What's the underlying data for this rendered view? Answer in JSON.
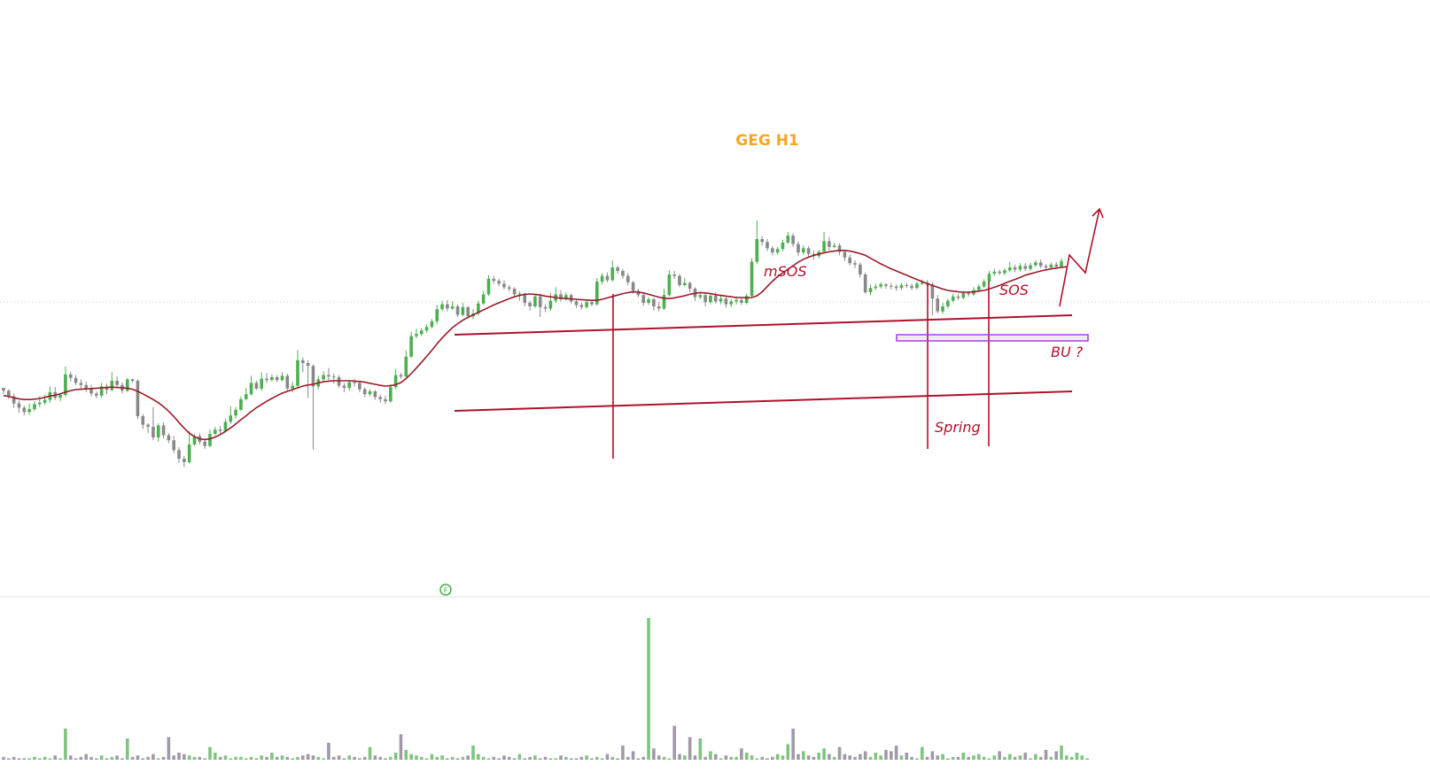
{
  "chart_data": {
    "type": "candlestick",
    "title": "GEG H1",
    "colors": {
      "title": "#f5a623",
      "up": "#4caf50",
      "down": "#888888",
      "volume_up": "#7fc47f",
      "volume_down": "#a09aa8",
      "annotation": "#b0102a",
      "moving_average": "#9a1b2b",
      "zone": "#a93ee0",
      "marker": "#33b233",
      "guide": "#c8c8c8"
    },
    "price_range": [
      0,
      100
    ],
    "volume_range": [
      0,
      100
    ],
    "candles": [
      [
        58.0,
        57.2,
        56.2,
        58.0
      ],
      [
        57.2,
        55.6,
        54.8,
        57.6
      ],
      [
        55.6,
        53.6,
        52.4,
        56.4
      ],
      [
        53.6,
        52.4,
        51.0,
        54.4
      ],
      [
        52.4,
        51.2,
        50.2,
        53.0
      ],
      [
        51.2,
        52.0,
        50.4,
        53.6
      ],
      [
        52.0,
        53.4,
        51.4,
        54.2
      ],
      [
        53.4,
        53.8,
        52.6,
        55.6
      ],
      [
        53.8,
        54.6,
        53.2,
        56.0
      ],
      [
        54.6,
        56.8,
        53.8,
        58.4
      ],
      [
        56.8,
        55.2,
        54.6,
        58.2
      ],
      [
        55.2,
        56.0,
        54.2,
        56.6
      ],
      [
        56.0,
        61.8,
        55.4,
        64.0
      ],
      [
        61.8,
        60.8,
        59.8,
        62.6
      ],
      [
        60.8,
        59.4,
        58.8,
        61.6
      ],
      [
        59.4,
        58.8,
        57.8,
        60.4
      ],
      [
        58.8,
        57.6,
        56.8,
        59.8
      ],
      [
        57.6,
        56.4,
        55.6,
        58.8
      ],
      [
        56.4,
        55.8,
        55.0,
        57.0
      ],
      [
        55.8,
        58.4,
        55.2,
        59.4
      ],
      [
        58.4,
        57.4,
        56.2,
        59.2
      ],
      [
        57.4,
        60.0,
        57.0,
        62.4
      ],
      [
        60.0,
        58.8,
        58.2,
        61.2
      ],
      [
        58.8,
        57.2,
        56.4,
        59.6
      ],
      [
        57.2,
        60.4,
        56.8,
        60.8
      ],
      [
        60.4,
        60.0,
        59.4,
        60.6
      ],
      [
        60.0,
        50.0,
        49.2,
        60.4
      ],
      [
        50.0,
        47.6,
        46.4,
        50.6
      ],
      [
        47.6,
        47.0,
        45.2,
        48.0
      ],
      [
        47.0,
        44.0,
        43.2,
        52.6
      ],
      [
        44.0,
        47.4,
        42.8,
        48.0
      ],
      [
        47.4,
        44.6,
        43.8,
        48.2
      ],
      [
        44.6,
        43.2,
        42.4,
        45.2
      ],
      [
        43.2,
        40.4,
        39.6,
        44.4
      ],
      [
        40.4,
        38.0,
        36.8,
        41.2
      ],
      [
        38.0,
        37.0,
        35.6,
        38.8
      ],
      [
        37.0,
        42.0,
        36.6,
        45.8
      ],
      [
        42.0,
        44.4,
        41.6,
        45.0
      ],
      [
        44.4,
        42.8,
        42.0,
        45.2
      ],
      [
        42.8,
        41.6,
        40.8,
        43.6
      ],
      [
        41.6,
        45.0,
        41.2,
        46.2
      ],
      [
        45.0,
        46.2,
        44.6,
        47.0
      ],
      [
        46.2,
        45.8,
        44.8,
        47.2
      ],
      [
        45.8,
        48.4,
        45.4,
        49.2
      ],
      [
        48.4,
        50.2,
        47.8,
        52.8
      ],
      [
        50.2,
        51.8,
        49.4,
        52.6
      ],
      [
        51.8,
        54.8,
        51.4,
        55.6
      ],
      [
        54.8,
        56.2,
        54.4,
        58.0
      ],
      [
        56.2,
        59.4,
        55.8,
        61.4
      ],
      [
        59.4,
        57.8,
        57.4,
        60.0
      ],
      [
        57.8,
        60.6,
        57.2,
        62.4
      ],
      [
        60.6,
        60.2,
        59.4,
        62.2
      ],
      [
        60.2,
        61.0,
        59.8,
        61.8
      ],
      [
        61.0,
        60.2,
        59.6,
        61.6
      ],
      [
        60.2,
        61.4,
        59.8,
        62.4
      ],
      [
        61.4,
        57.8,
        57.0,
        62.0
      ],
      [
        57.8,
        58.6,
        56.8,
        59.8
      ],
      [
        58.6,
        65.8,
        58.2,
        68.6
      ],
      [
        65.8,
        65.0,
        62.4,
        66.6
      ],
      [
        65.0,
        64.2,
        55.2,
        65.8
      ],
      [
        64.2,
        58.4,
        40.6,
        64.6
      ],
      [
        58.4,
        60.4,
        57.6,
        61.4
      ],
      [
        60.4,
        61.6,
        59.8,
        62.6
      ],
      [
        61.6,
        61.2,
        60.2,
        63.6
      ],
      [
        61.2,
        61.0,
        59.2,
        62.0
      ],
      [
        61.0,
        58.6,
        58.0,
        61.6
      ],
      [
        58.6,
        58.0,
        56.8,
        59.4
      ],
      [
        58.0,
        59.6,
        57.2,
        60.2
      ],
      [
        59.6,
        59.4,
        58.4,
        60.6
      ],
      [
        59.4,
        57.6,
        56.8,
        60.0
      ],
      [
        57.6,
        56.2,
        55.4,
        58.2
      ],
      [
        56.2,
        57.0,
        55.6,
        57.6
      ],
      [
        57.0,
        55.4,
        54.6,
        57.4
      ],
      [
        55.4,
        54.8,
        53.8,
        56.0
      ],
      [
        54.8,
        54.2,
        53.4,
        55.8
      ],
      [
        54.2,
        58.2,
        53.8,
        59.0
      ],
      [
        58.2,
        61.6,
        57.6,
        63.4
      ],
      [
        61.6,
        61.2,
        60.6,
        62.2
      ],
      [
        61.2,
        66.8,
        61.0,
        68.6
      ],
      [
        66.8,
        72.6,
        66.4,
        73.8
      ],
      [
        72.6,
        73.2,
        72.0,
        74.6
      ],
      [
        73.2,
        74.2,
        72.6,
        74.8
      ],
      [
        74.2,
        75.2,
        73.6,
        75.8
      ],
      [
        75.2,
        76.8,
        74.8,
        77.4
      ],
      [
        76.8,
        80.2,
        76.0,
        81.4
      ],
      [
        80.2,
        81.6,
        79.6,
        82.6
      ],
      [
        81.6,
        80.4,
        79.6,
        82.8
      ],
      [
        80.4,
        81.0,
        80.0,
        82.4
      ],
      [
        81.0,
        78.6,
        78.0,
        81.6
      ],
      [
        78.6,
        80.8,
        78.2,
        82.0
      ],
      [
        80.8,
        78.2,
        77.6,
        81.0
      ],
      [
        78.2,
        79.0,
        77.4,
        80.2
      ],
      [
        79.0,
        81.8,
        78.4,
        82.6
      ],
      [
        81.8,
        84.4,
        81.4,
        85.4
      ],
      [
        84.4,
        88.8,
        84.0,
        89.8
      ],
      [
        88.8,
        88.2,
        87.4,
        89.6
      ],
      [
        88.2,
        87.4,
        86.8,
        88.8
      ],
      [
        87.4,
        86.4,
        85.8,
        88.4
      ],
      [
        86.4,
        86.0,
        85.2,
        87.0
      ],
      [
        86.0,
        84.4,
        83.6,
        86.4
      ],
      [
        84.4,
        84.6,
        82.6,
        85.2
      ],
      [
        84.6,
        82.0,
        81.0,
        84.8
      ],
      [
        82.0,
        81.0,
        79.8,
        82.6
      ],
      [
        81.0,
        83.8,
        80.6,
        84.4
      ],
      [
        83.8,
        80.8,
        78.0,
        84.6
      ],
      [
        80.8,
        80.4,
        79.4,
        81.6
      ],
      [
        80.4,
        82.6,
        79.8,
        84.8
      ],
      [
        82.6,
        84.4,
        82.0,
        86.4
      ],
      [
        84.4,
        83.0,
        82.4,
        85.6
      ],
      [
        83.0,
        84.2,
        82.6,
        85.0
      ],
      [
        84.2,
        82.4,
        81.8,
        84.6
      ],
      [
        82.4,
        81.4,
        80.6,
        83.0
      ],
      [
        81.4,
        80.8,
        80.2,
        82.0
      ],
      [
        80.8,
        82.2,
        80.4,
        82.8
      ],
      [
        82.2,
        81.6,
        81.0,
        82.6
      ],
      [
        81.6,
        88.0,
        81.2,
        89.0
      ],
      [
        88.0,
        89.6,
        87.2,
        90.4
      ],
      [
        89.6,
        88.4,
        87.8,
        90.6
      ],
      [
        88.4,
        92.0,
        88.0,
        94.0
      ],
      [
        92.0,
        91.0,
        90.2,
        92.6
      ],
      [
        91.0,
        89.6,
        88.8,
        91.6
      ],
      [
        89.6,
        87.8,
        87.0,
        90.4
      ],
      [
        87.8,
        85.4,
        84.6,
        88.2
      ],
      [
        85.4,
        84.2,
        83.6,
        86.0
      ],
      [
        84.2,
        82.0,
        81.2,
        84.8
      ],
      [
        82.0,
        83.0,
        81.4,
        83.6
      ],
      [
        83.0,
        81.0,
        79.8,
        83.4
      ],
      [
        81.0,
        80.4,
        79.6,
        82.2
      ],
      [
        80.4,
        84.2,
        80.0,
        86.0
      ],
      [
        84.2,
        90.0,
        83.8,
        91.2
      ],
      [
        90.0,
        89.6,
        88.8,
        91.0
      ],
      [
        89.6,
        87.0,
        86.4,
        90.2
      ],
      [
        87.0,
        87.6,
        86.6,
        89.0
      ],
      [
        87.6,
        86.0,
        85.0,
        88.0
      ],
      [
        86.0,
        83.6,
        82.6,
        86.4
      ],
      [
        83.6,
        84.2,
        83.0,
        85.0
      ],
      [
        84.2,
        82.2,
        81.0,
        84.6
      ],
      [
        82.2,
        84.0,
        81.6,
        84.8
      ],
      [
        84.0,
        82.4,
        81.8,
        85.0
      ],
      [
        82.4,
        83.2,
        81.6,
        84.2
      ],
      [
        83.2,
        81.6,
        80.6,
        83.6
      ],
      [
        81.6,
        82.4,
        80.8,
        83.0
      ],
      [
        82.4,
        82.8,
        81.6,
        83.8
      ],
      [
        82.8,
        82.0,
        81.4,
        83.4
      ],
      [
        82.0,
        84.0,
        81.6,
        84.6
      ],
      [
        84.0,
        93.6,
        83.6,
        94.6
      ],
      [
        93.6,
        100.0,
        93.0,
        105.2
      ],
      [
        100.0,
        99.2,
        98.2,
        100.8
      ],
      [
        99.2,
        97.4,
        96.6,
        100.0
      ],
      [
        97.4,
        96.2,
        95.4,
        98.0
      ],
      [
        96.2,
        97.2,
        95.6,
        97.8
      ],
      [
        97.2,
        99.0,
        96.6,
        99.8
      ],
      [
        99.0,
        101.0,
        98.6,
        102.0
      ],
      [
        101.0,
        98.6,
        97.8,
        101.6
      ],
      [
        98.6,
        96.2,
        95.2,
        99.4
      ],
      [
        96.2,
        97.4,
        95.6,
        98.2
      ],
      [
        97.4,
        95.8,
        94.6,
        98.0
      ],
      [
        95.8,
        95.2,
        94.2,
        96.8
      ],
      [
        95.2,
        96.4,
        94.6,
        97.0
      ],
      [
        96.4,
        99.4,
        96.0,
        102.0
      ],
      [
        99.4,
        97.8,
        96.8,
        100.6
      ],
      [
        97.8,
        98.2,
        97.4,
        99.0
      ],
      [
        98.2,
        96.4,
        95.4,
        98.8
      ],
      [
        96.4,
        94.8,
        93.8,
        97.0
      ],
      [
        94.8,
        93.2,
        92.6,
        95.6
      ],
      [
        93.2,
        92.8,
        91.8,
        94.0
      ],
      [
        92.8,
        90.0,
        89.2,
        93.4
      ],
      [
        90.0,
        85.0,
        84.6,
        90.6
      ],
      [
        85.0,
        86.2,
        84.2,
        87.2
      ],
      [
        86.2,
        86.6,
        85.6,
        87.4
      ],
      [
        86.6,
        87.2,
        86.0,
        87.8
      ],
      [
        87.2,
        86.8,
        86.0,
        87.6
      ],
      [
        86.8,
        86.6,
        85.8,
        87.6
      ],
      [
        86.6,
        86.2,
        85.4,
        87.2
      ],
      [
        86.2,
        87.0,
        85.6,
        87.6
      ],
      [
        87.0,
        86.8,
        86.2,
        87.6
      ],
      [
        86.8,
        86.2,
        85.6,
        87.4
      ],
      [
        86.2,
        87.4,
        85.8,
        88.0
      ],
      [
        87.4,
        87.8,
        87.0,
        88.6
      ],
      [
        87.8,
        87.2,
        86.6,
        88.4
      ],
      [
        87.2,
        83.2,
        78.4,
        87.8
      ],
      [
        83.2,
        79.6,
        79.0,
        84.2
      ],
      [
        79.6,
        81.0,
        79.0,
        82.0
      ],
      [
        81.0,
        82.6,
        80.4,
        83.2
      ],
      [
        82.6,
        83.8,
        82.2,
        84.6
      ],
      [
        83.8,
        83.4,
        82.8,
        84.4
      ],
      [
        83.4,
        84.8,
        83.0,
        85.4
      ],
      [
        84.8,
        84.4,
        83.8,
        85.4
      ],
      [
        84.4,
        85.6,
        84.0,
        86.4
      ],
      [
        85.6,
        86.6,
        85.2,
        87.2
      ],
      [
        86.6,
        88.0,
        86.2,
        88.6
      ],
      [
        88.0,
        90.2,
        87.6,
        91.0
      ],
      [
        90.2,
        90.8,
        89.6,
        91.6
      ],
      [
        90.8,
        90.4,
        89.8,
        91.4
      ],
      [
        90.4,
        91.2,
        89.8,
        91.8
      ],
      [
        91.2,
        92.0,
        90.8,
        93.6
      ],
      [
        92.0,
        91.4,
        90.6,
        92.8
      ],
      [
        91.4,
        92.4,
        90.8,
        93.2
      ],
      [
        92.4,
        91.6,
        91.0,
        93.2
      ],
      [
        91.6,
        92.6,
        91.0,
        93.4
      ],
      [
        92.6,
        93.4,
        92.2,
        94.0
      ],
      [
        93.4,
        92.4,
        91.8,
        94.2
      ],
      [
        92.4,
        92.0,
        91.2,
        93.0
      ],
      [
        92.0,
        92.8,
        91.4,
        93.4
      ],
      [
        92.8,
        92.2,
        91.6,
        93.6
      ],
      [
        92.2,
        93.8,
        91.8,
        94.6
      ]
    ],
    "moving_average": [
      55.8,
      55.6,
      55.2,
      54.9,
      54.7,
      54.7,
      54.8,
      55.0,
      55.3,
      55.7,
      55.9,
      56.3,
      56.8,
      57.2,
      57.5,
      57.6,
      57.7,
      57.8,
      57.9,
      58.0,
      58.1,
      58.2,
      58.1,
      58.0,
      57.9,
      57.6,
      57.0,
      56.3,
      55.5,
      54.7,
      53.8,
      52.7,
      51.4,
      49.9,
      48.2,
      46.6,
      45.2,
      44.2,
      43.6,
      43.4,
      43.6,
      44.1,
      44.8,
      45.7,
      46.7,
      47.8,
      49.0,
      50.1,
      51.3,
      52.4,
      53.3,
      54.2,
      55.0,
      55.8,
      56.5,
      57.0,
      57.5,
      58.0,
      58.5,
      58.8,
      59.0,
      59.4,
      59.7,
      59.9,
      60.0,
      60.0,
      60.0,
      60.0,
      59.9,
      59.8,
      59.6,
      59.3,
      59.0,
      58.7,
      58.5,
      58.6,
      58.9,
      59.5,
      60.6,
      62.0,
      63.6,
      65.2,
      66.9,
      68.6,
      70.4,
      72.1,
      73.6,
      75.0,
      76.1,
      77.1,
      77.9,
      78.6,
      79.3,
      80.0,
      80.7,
      81.4,
      82.0,
      82.6,
      83.2,
      83.7,
      84.1,
      84.4,
      84.5,
      84.4,
      84.2,
      83.9,
      83.7,
      83.5,
      83.3,
      83.2,
      83.1,
      83.0,
      82.9,
      82.8,
      82.7,
      82.7,
      83.0,
      83.4,
      83.8,
      84.2,
      84.6,
      84.9,
      85.1,
      85.0,
      84.8,
      84.4,
      84.0,
      83.6,
      83.3,
      83.2,
      83.4,
      83.7,
      84.0,
      84.4,
      84.7,
      84.9,
      84.8,
      84.6,
      84.3,
      84.1,
      83.9,
      83.7,
      83.5,
      83.5,
      83.4,
      83.5,
      84.0,
      85.1,
      86.6,
      88.1,
      89.4,
      90.5,
      91.5,
      92.5,
      93.5,
      94.3,
      94.9,
      95.4,
      95.8,
      96.1,
      96.4,
      96.6,
      96.8,
      96.8,
      96.6,
      96.3,
      95.9,
      95.4,
      94.6,
      93.8,
      93.0,
      92.3,
      91.6,
      91.0,
      90.4,
      89.8,
      89.2,
      88.6,
      88.0,
      87.4,
      86.9,
      86.4,
      85.9,
      85.5,
      85.3,
      85.1,
      85.0,
      85.0,
      85.1,
      85.3,
      85.5,
      85.9,
      86.4,
      86.9,
      87.5,
      88.1,
      88.6,
      89.2,
      89.8,
      90.2,
      90.6,
      91.0,
      91.3,
      91.6,
      91.8,
      92.0,
      92.2
    ],
    "volume": [
      2,
      1,
      2,
      1,
      1,
      1,
      2,
      1,
      2,
      1,
      3,
      1,
      22,
      3,
      1,
      2,
      4,
      2,
      1,
      3,
      1,
      2,
      3,
      1,
      15,
      2,
      3,
      1,
      2,
      4,
      1,
      2,
      16,
      3,
      5,
      4,
      3,
      2,
      2,
      1,
      9,
      5,
      2,
      3,
      1,
      2,
      2,
      1,
      2,
      1,
      3,
      2,
      5,
      2,
      3,
      2,
      1,
      2,
      3,
      4,
      3,
      2,
      1,
      12,
      2,
      3,
      1,
      3,
      2,
      1,
      2,
      9,
      3,
      2,
      1,
      2,
      5,
      18,
      7,
      4,
      3,
      2,
      1,
      4,
      2,
      3,
      1,
      2,
      1,
      2,
      3,
      10,
      4,
      2,
      1,
      2,
      1,
      3,
      2,
      1,
      4,
      1,
      2,
      3,
      1,
      2,
      1,
      1,
      3,
      2,
      1,
      1,
      2,
      3,
      1,
      2,
      1,
      4,
      2,
      1,
      10,
      2,
      6,
      1,
      2,
      100,
      8,
      3,
      2,
      1,
      24,
      4,
      3,
      16,
      3,
      15,
      2,
      6,
      4,
      1,
      3,
      2,
      2,
      8,
      5,
      3,
      1,
      2,
      1,
      2,
      4,
      3,
      11,
      22,
      4,
      6,
      3,
      2,
      5,
      8,
      4,
      2,
      9,
      4,
      3,
      2,
      4,
      6,
      2,
      5,
      3,
      7,
      6,
      10,
      3,
      5,
      2,
      1,
      9,
      2,
      6,
      3,
      4,
      1,
      2,
      2,
      5,
      2,
      3,
      4,
      2,
      1,
      3,
      6,
      2,
      4,
      2,
      3,
      5,
      1,
      4,
      2,
      7,
      2,
      6,
      10,
      3,
      2,
      5,
      3,
      1
    ],
    "annotations": [
      "mSOS",
      "SOS",
      "BU ?",
      "Spring"
    ],
    "marker_label": "F"
  }
}
